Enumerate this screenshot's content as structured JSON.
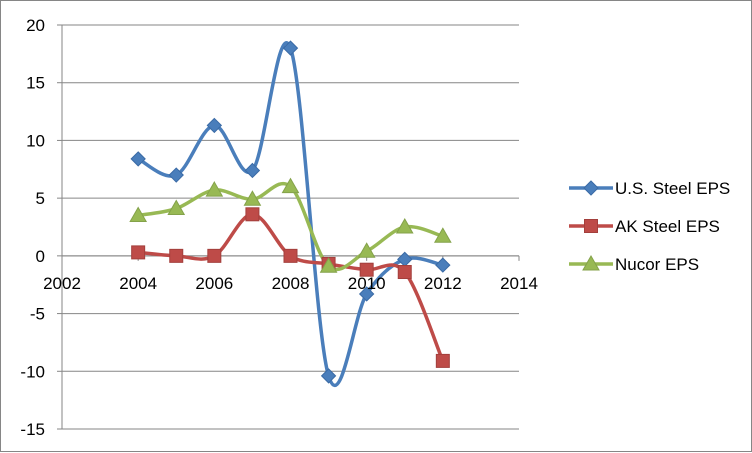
{
  "chart_data": {
    "type": "scatter",
    "title": "",
    "xlabel": "",
    "ylabel": "",
    "xlim": [
      2002,
      2014
    ],
    "ylim": [
      -15,
      20
    ],
    "x_ticks": [
      2002,
      2004,
      2006,
      2008,
      2010,
      2012,
      2014
    ],
    "y_ticks": [
      -15,
      -10,
      -5,
      0,
      5,
      10,
      15,
      20
    ],
    "x_tick_labels": [
      "2002",
      "2004",
      "2006",
      "2008",
      "2010",
      "2012",
      "2014"
    ],
    "y_tick_labels": [
      "-15",
      "-10",
      "-5",
      "0",
      "5",
      "10",
      "15",
      "20"
    ],
    "grid": "horizontal major gridlines",
    "legend_position": "right",
    "smoothed_lines": true,
    "x": [
      2004,
      2005,
      2006,
      2007,
      2008,
      2009,
      2010,
      2011,
      2012
    ],
    "series": [
      {
        "name": "U.S. Steel EPS",
        "color": "#4a7ebb",
        "marker": "diamond",
        "values": [
          8.4,
          7.0,
          11.3,
          7.4,
          18.0,
          -10.4,
          -3.3,
          -0.3,
          -0.8
        ]
      },
      {
        "name": "AK Steel EPS",
        "color": "#be4b48",
        "marker": "square",
        "values": [
          0.3,
          0.0,
          0.0,
          3.6,
          0.0,
          -0.7,
          -1.2,
          -1.4,
          -9.1
        ]
      },
      {
        "name": "Nucor EPS",
        "color": "#98b954",
        "marker": "triangle",
        "values": [
          3.5,
          4.1,
          5.7,
          4.9,
          6.0,
          -0.9,
          0.4,
          2.5,
          1.7
        ]
      }
    ]
  }
}
